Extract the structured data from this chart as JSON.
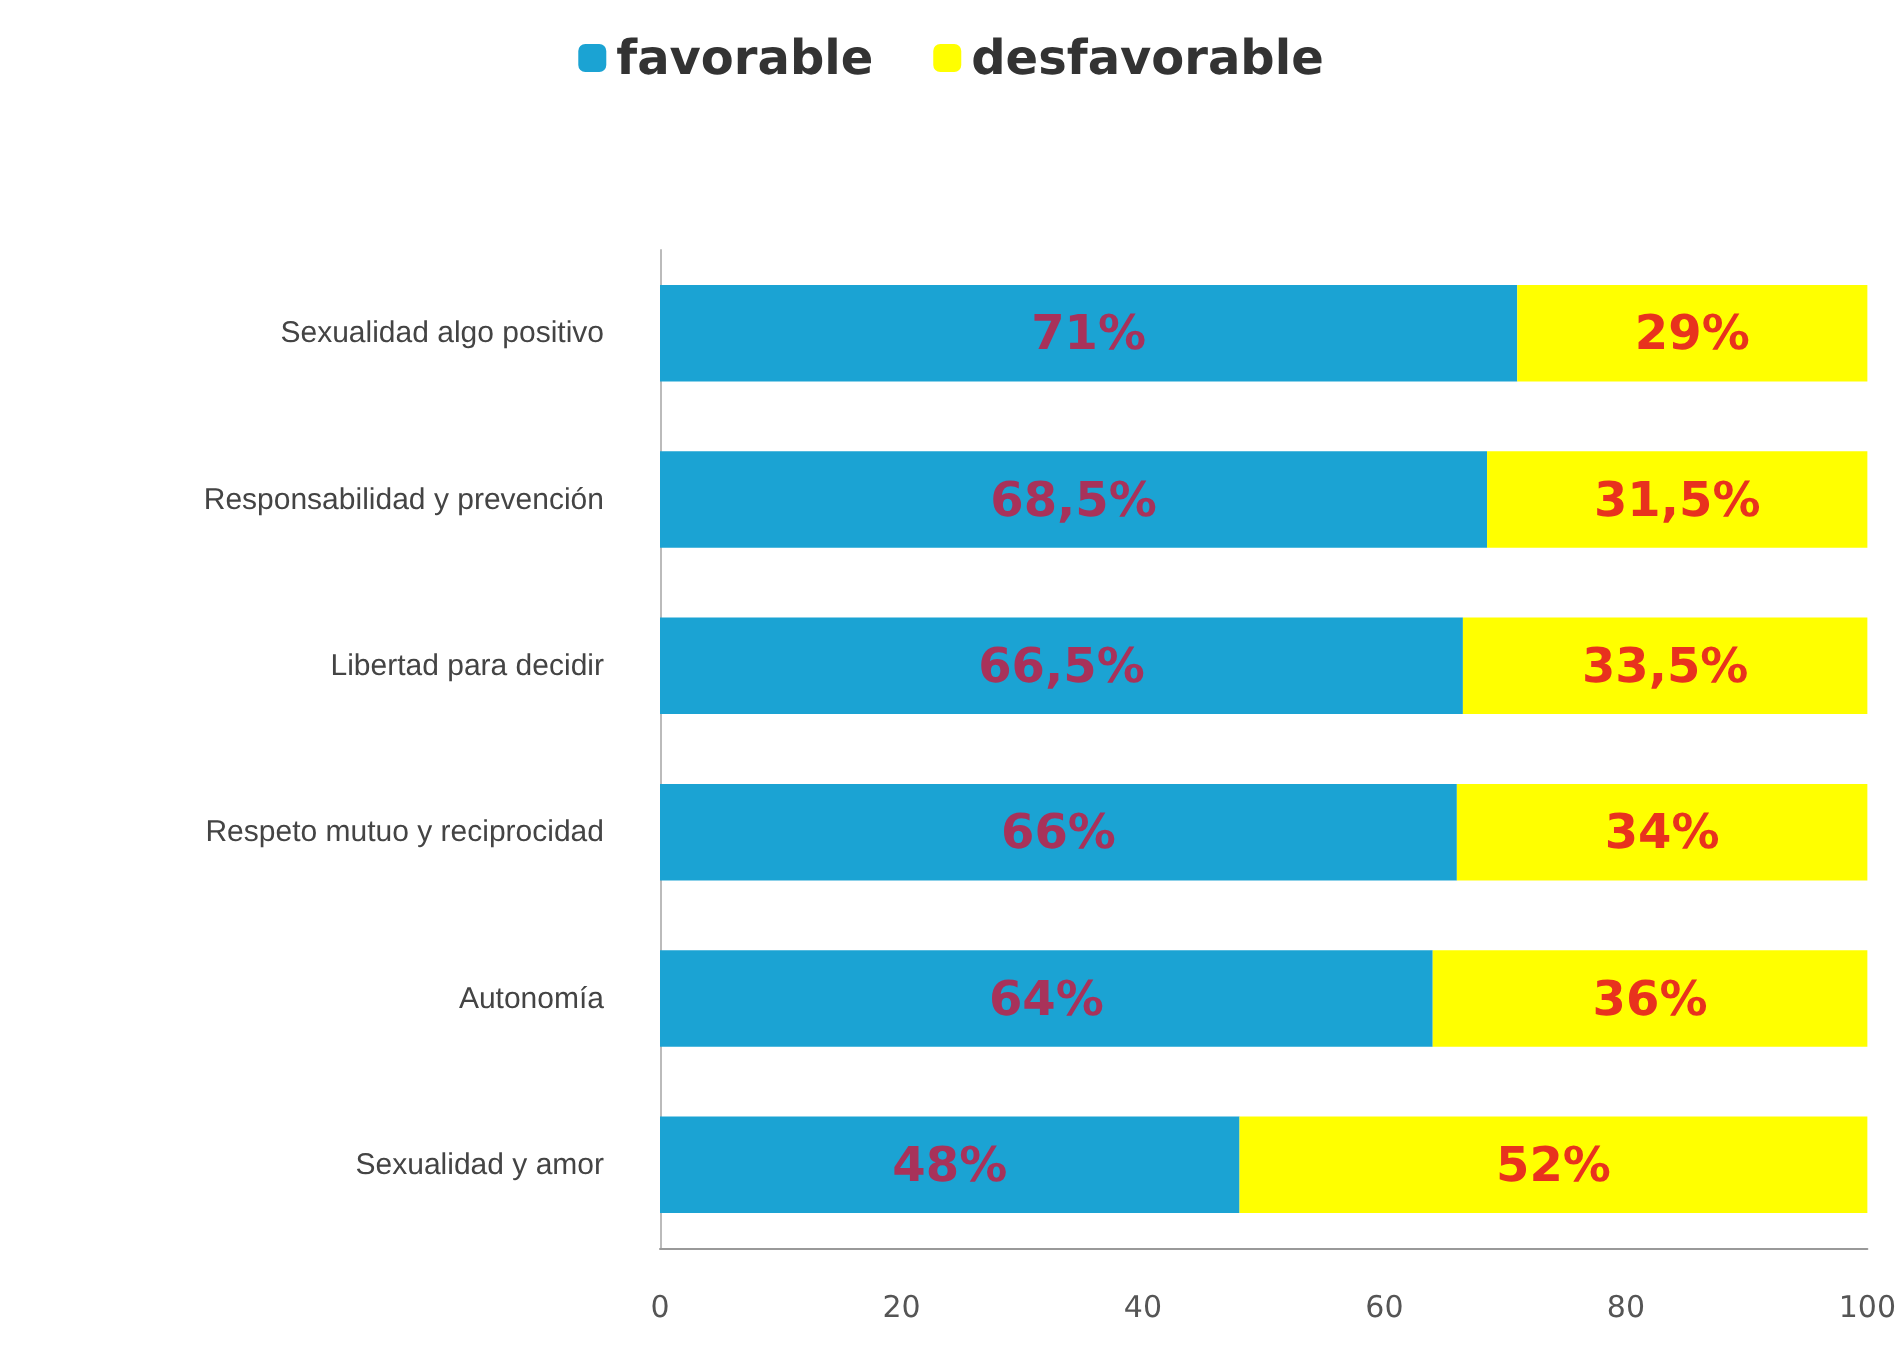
{
  "chart_data": {
    "type": "bar",
    "orientation": "horizontal",
    "stacked": true,
    "categories": [
      "Sexualidad algo positivo",
      "Responsabilidad y prevención",
      "Libertad para decidir",
      "Respeto mutuo y reciprocidad",
      "Autonomía",
      "Sexualidad y amor"
    ],
    "series": [
      {
        "name": "favorable",
        "color": "#1ba3d3",
        "values": [
          71,
          68.5,
          66.5,
          66,
          64,
          48
        ],
        "value_labels": [
          "71%",
          "68,5%",
          "66,5%",
          "66%",
          "64%",
          "48%"
        ]
      },
      {
        "name": "desfavorable",
        "color": "#ffff00",
        "values": [
          29,
          31.5,
          33.5,
          34,
          36,
          52
        ],
        "value_labels": [
          "29%",
          "31,5%",
          "33,5%",
          "34%",
          "36%",
          "52%"
        ]
      }
    ],
    "xlim": [
      0,
      100
    ],
    "xticks": [
      0,
      20,
      40,
      60,
      80,
      100
    ],
    "grid": false,
    "legend": "top"
  }
}
